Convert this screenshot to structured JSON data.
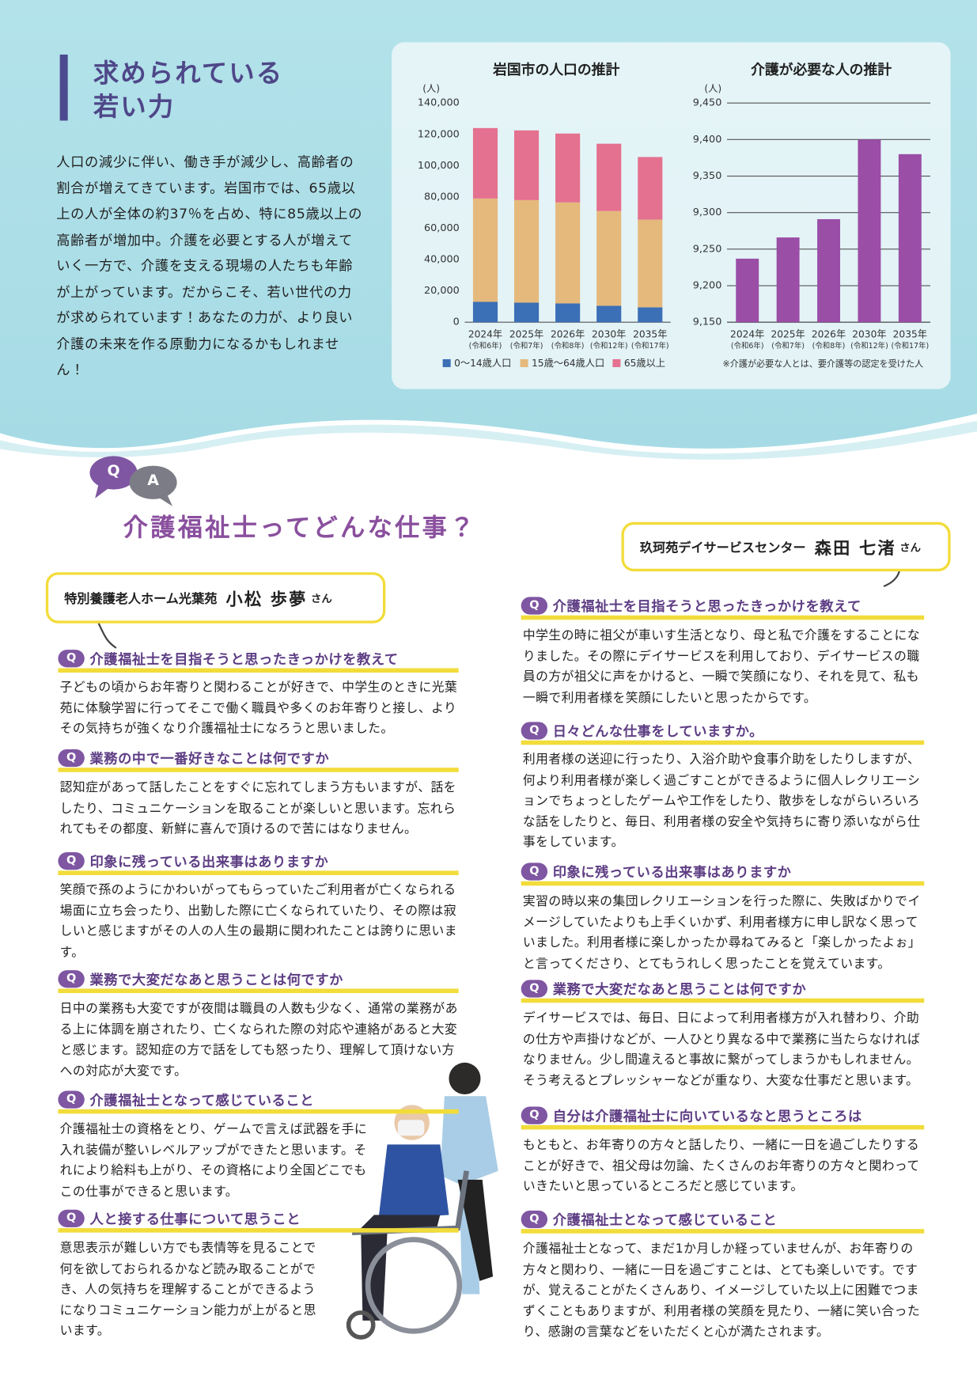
{
  "header": {
    "title": [
      "求められている",
      "若い力"
    ],
    "body": "人口の減少に伴い、働き手が減少し、高齢者の割合が増えてきています。岩国市では、65歳以上の人が全体の約37％を占め、特に85歳以上の高齢者が増加中。介護を必要とする人が増えていく一方で、介護を支える現場の人たちも年齢が上がっています。だからこそ、若い世代の力が求められています！あなたの力が、より良い介護の未来を作る原動力になるかもしれません！"
  },
  "chart_data": [
    {
      "type": "bar",
      "stacked": true,
      "title": "岩国市の人口の推計",
      "y_unit": "(人)",
      "categories": [
        "2024年",
        "2025年",
        "2026年",
        "2030年",
        "2035年"
      ],
      "category_sublabels": [
        "(令和6年)",
        "(令和7年)",
        "(令和8年)",
        "(令和12年)",
        "(令和17年)"
      ],
      "series": [
        {
          "name": "0～14歳人口",
          "color": "#3b6fb6",
          "values": [
            13000,
            12500,
            12000,
            10500,
            9500
          ]
        },
        {
          "name": "15歳～64歳人口",
          "color": "#e5b97c",
          "values": [
            66000,
            65500,
            64500,
            60500,
            56000
          ]
        },
        {
          "name": "65歳以上",
          "color": "#e4718f",
          "values": [
            45000,
            44500,
            44000,
            43000,
            40000
          ]
        }
      ],
      "ylim": [
        0,
        140000
      ],
      "yticks": [
        0,
        {
          "value": 20000,
          "label": "20,000"
        },
        {
          "value": 40000,
          "label": "40,000"
        },
        {
          "value": 60000,
          "label": "60,000"
        },
        {
          "value": 80000,
          "label": "80,000"
        },
        {
          "value": 100000,
          "label": "100,000"
        },
        {
          "value": 120000,
          "label": "120,000"
        },
        {
          "value": 140000,
          "label": "140,000"
        }
      ],
      "grid": false
    },
    {
      "type": "bar",
      "title": "介護が必要な人の推計",
      "y_unit": "(人)",
      "categories": [
        "2024年",
        "2025年",
        "2026年",
        "2030年",
        "2035年"
      ],
      "category_sublabels": [
        "(令和6年)",
        "(令和7年)",
        "(令和8年)",
        "(令和12年)",
        "(令和17年)"
      ],
      "values": [
        9237,
        9266,
        9291,
        9400,
        9380
      ],
      "color": "#9a4ea6",
      "ylim": [
        9150,
        9450
      ],
      "yticks": [
        {
          "value": 9150,
          "label": "9,150"
        },
        {
          "value": 9200,
          "label": "9,200"
        },
        {
          "value": 9250,
          "label": "9,250"
        },
        {
          "value": 9300,
          "label": "9,300"
        },
        {
          "value": 9350,
          "label": "9,350"
        },
        {
          "value": 9400,
          "label": "9,400"
        },
        {
          "value": 9450,
          "label": "9,450"
        }
      ],
      "grid": true,
      "note": "※介護が必要な人とは、要介護等の認定を受けた人"
    }
  ],
  "qa": {
    "icons": [
      "Q",
      "A"
    ],
    "title": "介護福祉士ってどんな仕事？",
    "badge": "Q",
    "people": [
      {
        "workplace": "特別養護老人ホーム光葉苑",
        "name": "小松 歩夢",
        "honorific": "さん",
        "items": [
          {
            "q": "介護福祉士を目指そうと思ったきっかけを教えて",
            "a": "子どもの頃からお年寄りと関わることが好きで、中学生のときに光葉苑に体験学習に行ってそこで働く職員や多くのお年寄りと接し、よりその気持ちが強くなり介護福祉士になろうと思いました。"
          },
          {
            "q": "業務の中で一番好きなことは何ですか",
            "a": "認知症があって話したことをすぐに忘れてしまう方もいますが、話をしたり、コミュニケーションを取ることが楽しいと思います。忘れられてもその都度、新鮮に喜んで頂けるので苦にはなりません。"
          },
          {
            "q": "印象に残っている出来事はありますか",
            "a": "笑顔で孫のようにかわいがってもらっていたご利用者が亡くなられる場面に立ち会ったり、出勤した際に亡くなられていたり、その際は寂しいと感じますがその人の人生の最期に関われたことは誇りに思います。"
          },
          {
            "q": "業務で大変だなあと思うことは何ですか",
            "a": "日中の業務も大変ですが夜間は職員の人数も少なく、通常の業務がある上に体調を崩されたり、亡くなられた際の対応や連絡があると大変と感じます。認知症の方で話をしても怒ったり、理解して頂けない方への対応が大変です。"
          },
          {
            "q": "介護福祉士となって感じていること",
            "a": "介護福祉士の資格をとり、ゲームで言えば武器を手に入れ装備が整いレベルアップができたと思います。それにより給料も上がり、その資格により全国どこでもこの仕事ができると思います。"
          },
          {
            "q": "人と接する仕事について思うこと",
            "a": "意思表示が難しい方でも表情等を見ることで何を欲しておられるかなど読み取ることができ、人の気持ちを理解することができるようになりコミュニケーション能力が上がると思います。"
          }
        ]
      },
      {
        "workplace": "玖珂苑デイサービスセンター",
        "name": "森田 七渚",
        "honorific": "さん",
        "items": [
          {
            "q": "介護福祉士を目指そうと思ったきっかけを教えて",
            "a": "中学生の時に祖父が車いす生活となり、母と私で介護をすることになりました。その際にデイサービスを利用しており、デイサービスの職員の方が祖父に声をかけると、一瞬で笑顔になり、それを見て、私も一瞬で利用者様を笑顔にしたいと思ったからです。"
          },
          {
            "q": "日々どんな仕事をしていますか。",
            "a": "利用者様の送迎に行ったり、入浴介助や食事介助をしたりしますが、何より利用者様が楽しく過ごすことができるように個人レクリエーションでちょっとしたゲームや工作をしたり、散歩をしながらいろいろな話をしたりと、毎日、利用者様の安全や気持ちに寄り添いながら仕事をしています。"
          },
          {
            "q": "印象に残っている出来事はありますか",
            "a": "実習の時以来の集団レクリエーションを行った際に、失敗ばかりでイメージしていたよりも上手くいかず、利用者様方に申し訳なく思っていました。利用者様に楽しかったか尋ねてみると「楽しかったよぉ」と言ってくださり、とてもうれしく思ったことを覚えています。"
          },
          {
            "q": "業務で大変だなあと思うことは何ですか",
            "a": "デイサービスでは、毎日、日によって利用者様方が入れ替わり、介助の仕方や声掛けなどが、一人ひとり異なる中で業務に当たらなければなりません。少し間違えると事故に繋がってしまうかもしれません。そう考えるとプレッシャーなどが重なり、大変な仕事だと思います。"
          },
          {
            "q": "自分は介護福祉士に向いているなと思うところは",
            "a": "もともと、お年寄りの方々と話したり、一緒に一日を過ごしたりすることが好きで、祖父母は勿論、たくさんのお年寄りの方々と関わっていきたいと思っているところだと感じています。"
          },
          {
            "q": "介護福祉士となって感じていること",
            "a": "介護福祉士となって、まだ1か月しか経っていませんが、お年寄りの方々と関わり、一緒に一日を過ごすことは、とても楽しいです。ですが、覚えることがたくさんあり、イメージしていた以上に困難でつまずくこともありますが、利用者様の笑顔を見たり、一緒に笑い合ったり、感謝の言葉などをいただくと心が満たされます。"
          }
        ]
      }
    ]
  }
}
